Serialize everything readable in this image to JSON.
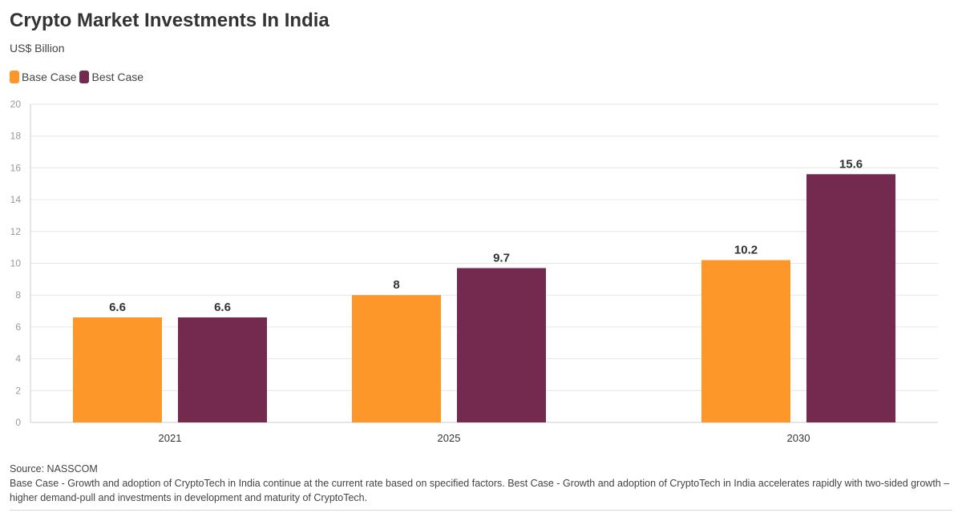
{
  "chart_data": {
    "type": "bar",
    "title": "Crypto Market Investments In India",
    "subtitle": "US$ Billion",
    "categories": [
      "2021",
      "2025",
      "2030"
    ],
    "series": [
      {
        "name": "Base Case",
        "values": [
          6.6,
          8,
          10.2
        ],
        "color": "#fd972a"
      },
      {
        "name": "Best Case",
        "values": [
          6.6,
          9.7,
          15.6
        ],
        "color": "#74294f"
      }
    ],
    "data_labels": [
      [
        "6.6",
        "8",
        "10.2"
      ],
      [
        "6.6",
        "9.7",
        "15.6"
      ]
    ],
    "ylim": [
      0,
      20
    ],
    "yticks": [
      "0",
      "2",
      "4",
      "6",
      "8",
      "10",
      "12",
      "14",
      "16",
      "18",
      "20"
    ],
    "xlabel": "",
    "ylabel": "",
    "grid": true,
    "legend": "top-left"
  },
  "footer": {
    "source": "Source: NASSCOM",
    "note": "Base Case - Growth and adoption of CryptoTech in India continue at the current rate based on specified factors. Best Case - Growth and adoption of CryptoTech in India accelerates rapidly with two-sided growth – higher demand-pull and investments in development and maturity of CryptoTech."
  }
}
